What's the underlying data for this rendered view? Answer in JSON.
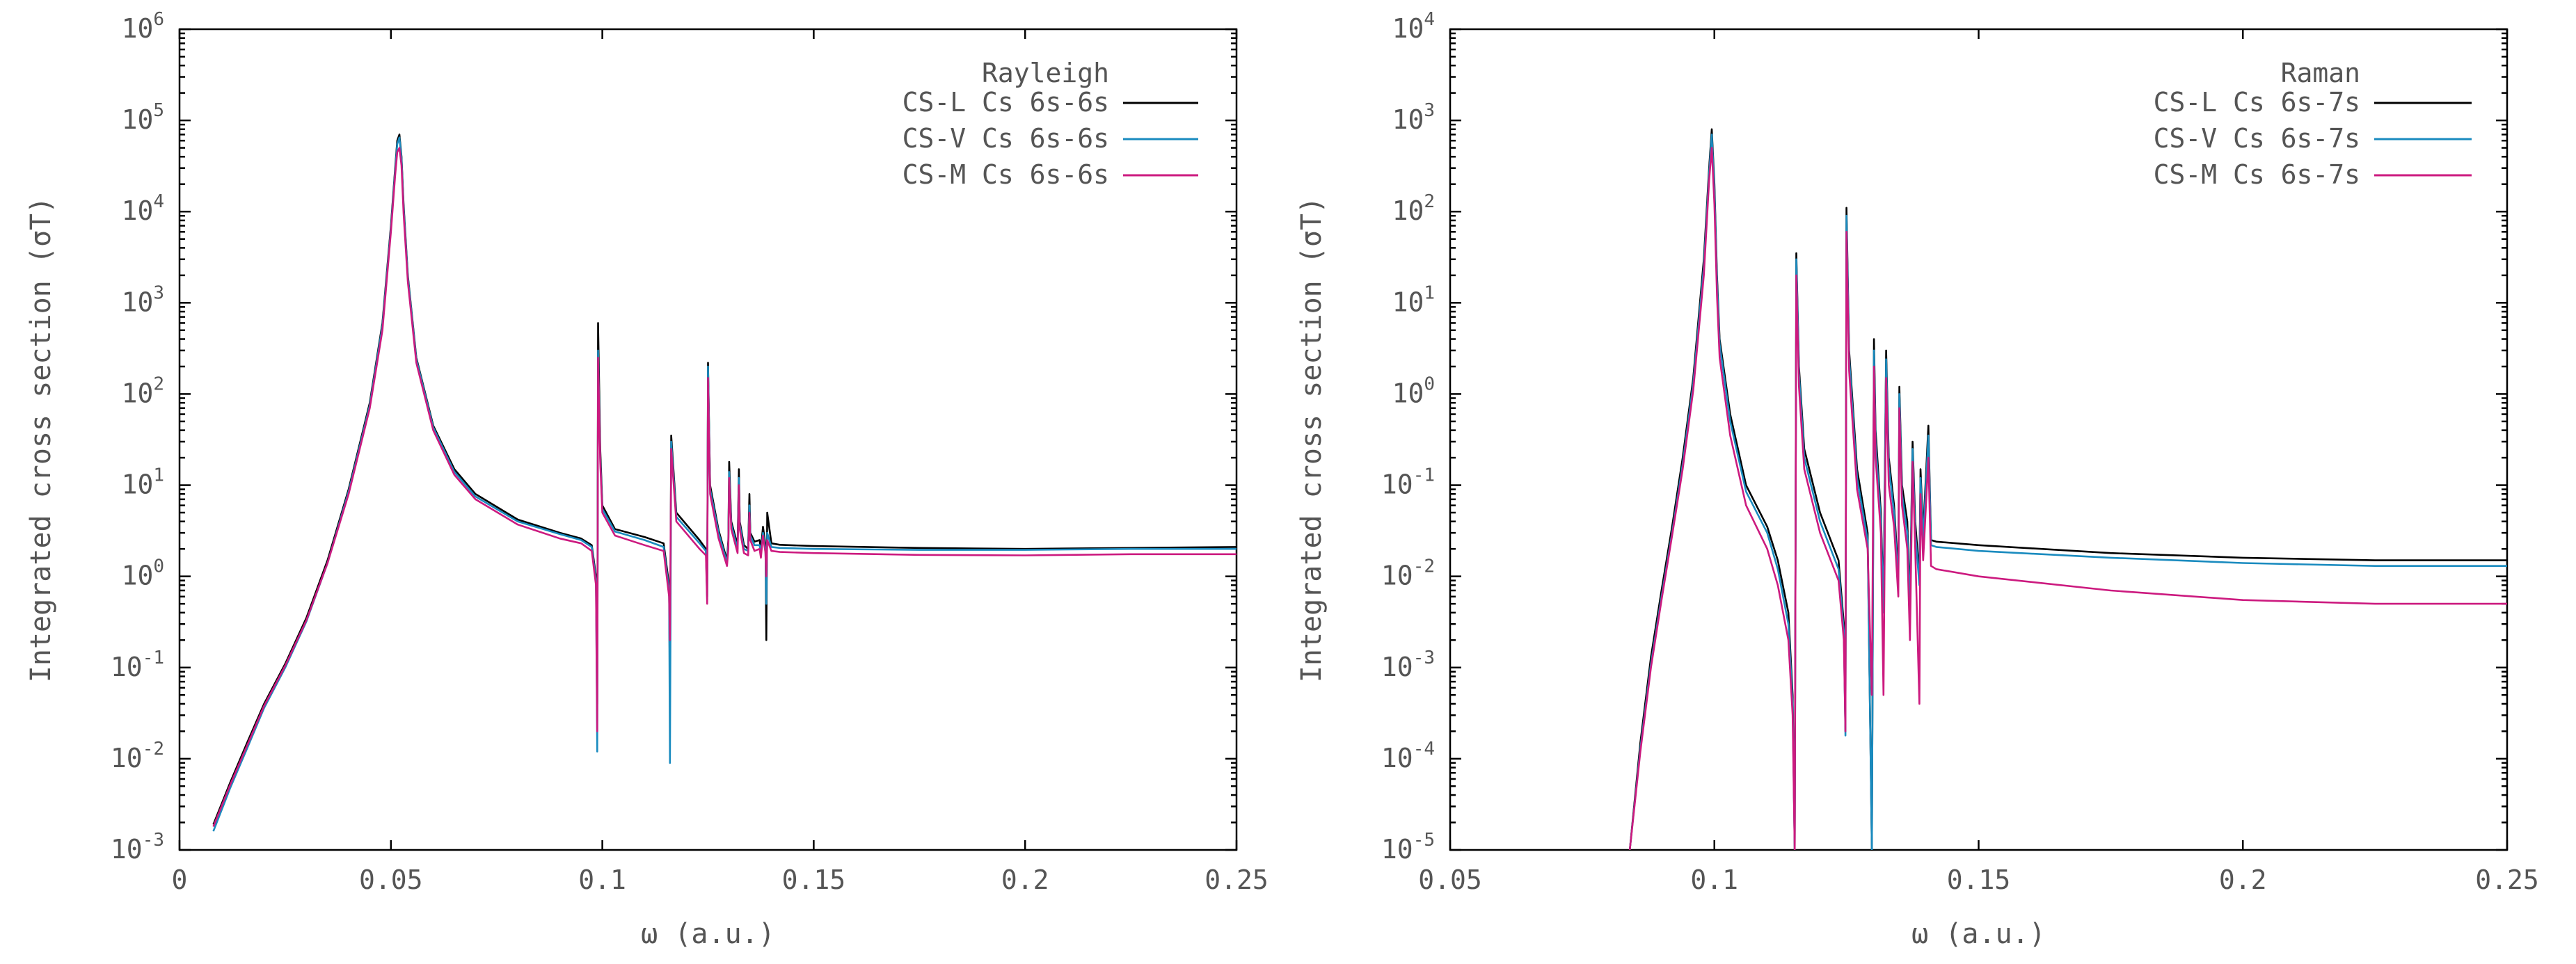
{
  "chart_data": [
    {
      "type": "line",
      "name": "rayleigh",
      "ylog": true,
      "xlabel": "ω (a.u.)",
      "ylabel": "Integrated cross section (σT)",
      "legend_title": "Rayleigh",
      "legend_position": "top-right",
      "xlim": [
        0,
        0.25
      ],
      "ylim_exp": [
        -3,
        6
      ],
      "x_ticks": [
        "0",
        "0.05",
        "0.1",
        "0.15",
        "0.2",
        "0.25"
      ],
      "x_tick_values": [
        0,
        0.05,
        0.1,
        0.15,
        0.2,
        0.25
      ],
      "y_tick_exponents": [
        "-3",
        "-2",
        "-1",
        "0",
        "1",
        "2",
        "3",
        "4",
        "5",
        "6"
      ],
      "y_tick_base": "10",
      "series": [
        {
          "name": "CS-L Cs 6s-6s",
          "color": "#000000",
          "x": [
            0.008,
            0.012,
            0.016,
            0.02,
            0.025,
            0.03,
            0.035,
            0.04,
            0.045,
            0.048,
            0.05,
            0.051,
            0.0515,
            0.052,
            0.0525,
            0.053,
            0.054,
            0.056,
            0.06,
            0.065,
            0.07,
            0.08,
            0.09,
            0.095,
            0.0975,
            0.0985,
            0.0988,
            0.099,
            0.0995,
            0.1,
            0.103,
            0.11,
            0.1145,
            0.1158,
            0.116,
            0.1163,
            0.1175,
            0.123,
            0.1245,
            0.1248,
            0.125,
            0.1255,
            0.1275,
            0.1295,
            0.1298,
            0.13,
            0.1305,
            0.132,
            0.1323,
            0.1325,
            0.1335,
            0.1345,
            0.1348,
            0.135,
            0.136,
            0.1372,
            0.1375,
            0.138,
            0.1386,
            0.1388,
            0.139,
            0.14,
            0.142,
            0.15,
            0.175,
            0.2,
            0.225,
            0.25
          ],
          "values": [
            0.0019,
            0.0055,
            0.015,
            0.04,
            0.11,
            0.35,
            1.5,
            9,
            80,
            600,
            7000,
            30000,
            60000,
            70000,
            40000,
            12000,
            2000,
            250,
            45,
            15,
            8,
            4.2,
            3.0,
            2.6,
            2.2,
            1.0,
            0.04,
            600,
            25,
            6,
            3.3,
            2.7,
            2.3,
            0.8,
            0.05,
            35,
            5,
            2.5,
            2.0,
            0.6,
            220,
            10,
            3.2,
            1.5,
            2.5,
            18,
            4,
            2.2,
            15,
            4,
            2.2,
            2.0,
            8,
            3,
            2.4,
            2.5,
            2.0,
            3.5,
            2.2,
            0.2,
            5,
            2.3,
            2.22,
            2.15,
            2.05,
            2.0,
            2.05,
            2.1
          ]
        },
        {
          "name": "CS-V Cs 6s-6s",
          "color": "#1a8bbf",
          "x": [
            0.008,
            0.012,
            0.016,
            0.02,
            0.025,
            0.03,
            0.035,
            0.04,
            0.045,
            0.048,
            0.05,
            0.051,
            0.0515,
            0.052,
            0.0525,
            0.053,
            0.054,
            0.056,
            0.06,
            0.065,
            0.07,
            0.08,
            0.09,
            0.095,
            0.0975,
            0.0985,
            0.0988,
            0.099,
            0.0995,
            0.1,
            0.103,
            0.11,
            0.1145,
            0.1158,
            0.116,
            0.1163,
            0.1175,
            0.123,
            0.1245,
            0.1248,
            0.125,
            0.1255,
            0.1275,
            0.1295,
            0.1298,
            0.13,
            0.1305,
            0.132,
            0.1323,
            0.1325,
            0.1335,
            0.1345,
            0.1348,
            0.135,
            0.136,
            0.1372,
            0.1375,
            0.138,
            0.1386,
            0.1388,
            0.139,
            0.14,
            0.142,
            0.15,
            0.175,
            0.2,
            0.225,
            0.25
          ],
          "values": [
            0.0016,
            0.0048,
            0.013,
            0.036,
            0.1,
            0.32,
            1.4,
            8.5,
            75,
            560,
            6500,
            28000,
            55000,
            65000,
            38000,
            11000,
            1900,
            240,
            43,
            14,
            7.5,
            4.0,
            2.9,
            2.5,
            2.1,
            0.9,
            0.012,
            300,
            20,
            5.5,
            3.1,
            2.5,
            2.1,
            0.7,
            0.009,
            30,
            4.5,
            2.3,
            1.9,
            0.55,
            200,
            9,
            3.0,
            1.4,
            2.3,
            14,
            3.7,
            2.0,
            12,
            3.7,
            2.0,
            1.9,
            6,
            2.8,
            2.2,
            2.2,
            1.8,
            3.0,
            2.0,
            0.5,
            3,
            2.1,
            2.05,
            2.0,
            1.95,
            1.95,
            2.0,
            2.0
          ]
        },
        {
          "name": "CS-M Cs 6s-6s",
          "color": "#cc1a7f",
          "x": [
            0.008,
            0.012,
            0.016,
            0.02,
            0.025,
            0.03,
            0.035,
            0.04,
            0.045,
            0.048,
            0.05,
            0.051,
            0.0515,
            0.052,
            0.0525,
            0.053,
            0.054,
            0.056,
            0.06,
            0.065,
            0.07,
            0.08,
            0.09,
            0.095,
            0.0975,
            0.0985,
            0.0988,
            0.099,
            0.0995,
            0.1,
            0.103,
            0.11,
            0.1145,
            0.1158,
            0.116,
            0.1163,
            0.1175,
            0.123,
            0.1245,
            0.1248,
            0.125,
            0.1255,
            0.1275,
            0.1295,
            0.1298,
            0.13,
            0.1305,
            0.132,
            0.1323,
            0.1325,
            0.1335,
            0.1345,
            0.1348,
            0.135,
            0.136,
            0.1372,
            0.1375,
            0.138,
            0.1386,
            0.1388,
            0.139,
            0.14,
            0.142,
            0.15,
            0.175,
            0.2,
            0.225,
            0.25
          ],
          "values": [
            0.0018,
            0.0052,
            0.014,
            0.038,
            0.105,
            0.33,
            1.4,
            8,
            70,
            500,
            6000,
            25000,
            45000,
            50000,
            32000,
            9500,
            1700,
            220,
            40,
            13,
            7,
            3.7,
            2.6,
            2.3,
            1.9,
            0.8,
            0.02,
            250,
            18,
            5,
            2.8,
            2.2,
            1.9,
            0.6,
            0.2,
            25,
            4,
            2.0,
            1.7,
            0.5,
            150,
            8,
            2.6,
            1.3,
            2.0,
            12,
            3.3,
            1.8,
            10,
            3.3,
            1.8,
            1.7,
            5,
            2.5,
            1.9,
            2.0,
            1.6,
            2.8,
            1.8,
            1.0,
            2.5,
            1.9,
            1.85,
            1.8,
            1.72,
            1.7,
            1.75,
            1.75
          ]
        }
      ]
    },
    {
      "type": "line",
      "name": "raman",
      "ylog": true,
      "xlabel": "ω (a.u.)",
      "ylabel": "Integrated cross section (σT)",
      "legend_title": "Raman",
      "legend_position": "top-right",
      "xlim": [
        0.05,
        0.25
      ],
      "ylim_exp": [
        -5,
        4
      ],
      "x_ticks": [
        "0.05",
        "0.1",
        "0.15",
        "0.2",
        "0.25"
      ],
      "x_tick_values": [
        0.05,
        0.1,
        0.15,
        0.2,
        0.25
      ],
      "y_tick_exponents": [
        "-5",
        "-4",
        "-3",
        "-2",
        "-1",
        "0",
        "1",
        "2",
        "3",
        "4"
      ],
      "y_tick_base": "10",
      "series": [
        {
          "name": "CS-L Cs 6s-7s",
          "color": "#000000",
          "x": [
            0.084,
            0.086,
            0.088,
            0.09,
            0.092,
            0.094,
            0.096,
            0.098,
            0.099,
            0.0995,
            0.1,
            0.1005,
            0.101,
            0.103,
            0.106,
            0.11,
            0.112,
            0.114,
            0.1148,
            0.1152,
            0.1155,
            0.116,
            0.117,
            0.12,
            0.1235,
            0.1245,
            0.1248,
            0.125,
            0.1255,
            0.127,
            0.129,
            0.1298,
            0.1302,
            0.1305,
            0.1315,
            0.132,
            0.1325,
            0.133,
            0.134,
            0.1348,
            0.135,
            0.1355,
            0.1365,
            0.137,
            0.1375,
            0.138,
            0.1388,
            0.139,
            0.1395,
            0.1405,
            0.141,
            0.142,
            0.15,
            0.175,
            0.2,
            0.225,
            0.25
          ],
          "values": [
            1e-05,
            0.00015,
            0.0013,
            0.007,
            0.035,
            0.2,
            1.5,
            30,
            300,
            800,
            200,
            20,
            4,
            0.6,
            0.1,
            0.035,
            0.015,
            0.004,
            0.0005,
            1e-05,
            35,
            2,
            0.25,
            0.05,
            0.015,
            0.003,
            0.0002,
            110,
            3,
            0.15,
            0.03,
            1e-05,
            4,
            0.4,
            0.05,
            0.005,
            3,
            0.2,
            0.06,
            0.01,
            1.2,
            0.1,
            0.04,
            0.005,
            0.3,
            0.04,
            0.01,
            0.15,
            0.03,
            0.45,
            0.025,
            0.024,
            0.022,
            0.018,
            0.016,
            0.015,
            0.015
          ]
        },
        {
          "name": "CS-V Cs 6s-7s",
          "color": "#1a8bbf",
          "x": [
            0.084,
            0.086,
            0.088,
            0.09,
            0.092,
            0.094,
            0.096,
            0.098,
            0.099,
            0.0995,
            0.1,
            0.1005,
            0.101,
            0.103,
            0.106,
            0.11,
            0.112,
            0.114,
            0.1148,
            0.1152,
            0.1155,
            0.116,
            0.117,
            0.12,
            0.1235,
            0.1245,
            0.1248,
            0.125,
            0.1255,
            0.127,
            0.129,
            0.1298,
            0.1302,
            0.1305,
            0.1315,
            0.132,
            0.1325,
            0.133,
            0.134,
            0.1348,
            0.135,
            0.1355,
            0.1365,
            0.137,
            0.1375,
            0.138,
            0.1388,
            0.139,
            0.1395,
            0.1405,
            0.141,
            0.142,
            0.15,
            0.175,
            0.2,
            0.225,
            0.25
          ],
          "values": [
            1e-05,
            0.00013,
            0.0011,
            0.006,
            0.03,
            0.17,
            1.3,
            25,
            260,
            700,
            170,
            17,
            3.5,
            0.5,
            0.085,
            0.03,
            0.012,
            0.003,
            0.0004,
            1e-05,
            30,
            1.7,
            0.2,
            0.04,
            0.012,
            0.0025,
            0.00018,
            90,
            2.5,
            0.12,
            0.025,
            1e-05,
            3,
            0.3,
            0.04,
            0.004,
            2.4,
            0.16,
            0.05,
            0.008,
            1.0,
            0.08,
            0.03,
            0.004,
            0.25,
            0.03,
            0.008,
            0.12,
            0.025,
            0.35,
            0.022,
            0.021,
            0.019,
            0.016,
            0.014,
            0.013,
            0.013
          ]
        },
        {
          "name": "CS-M Cs 6s-7s",
          "color": "#cc1a7f",
          "x": [
            0.084,
            0.086,
            0.088,
            0.09,
            0.092,
            0.094,
            0.096,
            0.098,
            0.099,
            0.0995,
            0.1,
            0.1005,
            0.101,
            0.103,
            0.106,
            0.11,
            0.112,
            0.114,
            0.1148,
            0.1152,
            0.1155,
            0.116,
            0.117,
            0.12,
            0.1235,
            0.1245,
            0.1248,
            0.125,
            0.1255,
            0.127,
            0.129,
            0.1298,
            0.1302,
            0.1305,
            0.1315,
            0.132,
            0.1325,
            0.133,
            0.134,
            0.1348,
            0.135,
            0.1355,
            0.1365,
            0.137,
            0.1375,
            0.138,
            0.1388,
            0.139,
            0.1395,
            0.1405,
            0.141,
            0.142,
            0.15,
            0.175,
            0.2,
            0.225,
            0.25
          ],
          "values": [
            1e-05,
            0.00012,
            0.001,
            0.0055,
            0.028,
            0.15,
            1.1,
            20,
            220,
            500,
            120,
            12,
            2.5,
            0.35,
            0.06,
            0.02,
            0.008,
            0.002,
            0.0003,
            1e-05,
            20,
            1.2,
            0.15,
            0.03,
            0.009,
            0.002,
            0.0002,
            60,
            1.8,
            0.09,
            0.02,
            0.0005,
            2,
            0.2,
            0.03,
            0.0005,
            1.5,
            0.1,
            0.035,
            0.006,
            0.7,
            0.06,
            0.02,
            0.002,
            0.18,
            0.02,
            0.0004,
            0.08,
            0.015,
            0.2,
            0.013,
            0.012,
            0.01,
            0.007,
            0.0055,
            0.005,
            0.005
          ]
        }
      ]
    }
  ]
}
